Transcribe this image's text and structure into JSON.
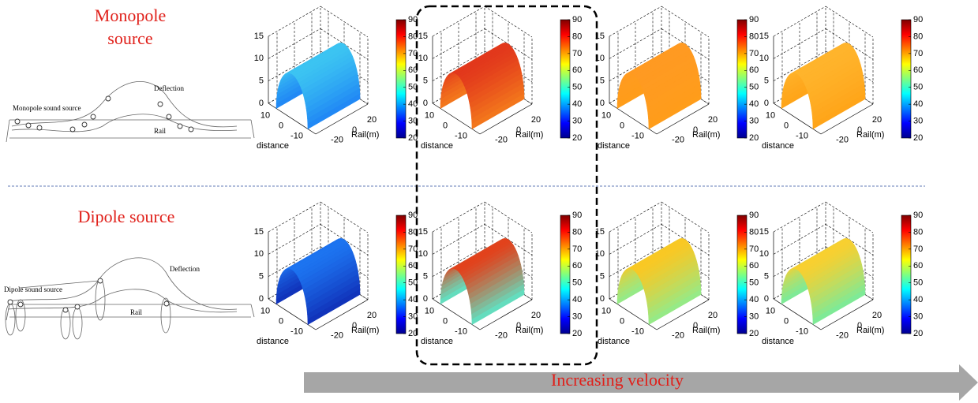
{
  "left": {
    "monopole": {
      "title": [
        "Monopole",
        "source"
      ],
      "source_label": "Monopole sound source",
      "deflection": "Deflection",
      "rail": "Rail"
    },
    "dipole": {
      "title": [
        "Dipole source"
      ],
      "source_label": "Dipole sound source",
      "deflection": "Deflection",
      "rail": "Rail"
    }
  },
  "axes": {
    "zlim": [
      0,
      15
    ],
    "zticks": [
      0,
      5,
      10,
      15
    ],
    "distance_lim": [
      -15,
      15
    ],
    "distance_ticks": [
      10,
      0,
      -10
    ],
    "distance_label": "distance",
    "rail_lim": [
      -30,
      30
    ],
    "rail_ticks": [
      -20,
      0,
      20
    ],
    "rail_label": "Rail(m)",
    "colorbar_lim": [
      20,
      90
    ],
    "colorbar_ticks": [
      20,
      30,
      40,
      50,
      60,
      70,
      80,
      90
    ]
  },
  "rows": [
    {
      "panels": [
        {
          "colors": [
            "#1f86f5",
            "#3cc4f2"
          ]
        },
        {
          "colors": [
            "#f47a1c",
            "#e2381c"
          ]
        },
        {
          "colors": [
            "#ff9d1a",
            "#ff9a22"
          ]
        },
        {
          "colors": [
            "#ffa418",
            "#ffb42c"
          ]
        }
      ]
    },
    {
      "panels": [
        {
          "colors": [
            "#1030b8",
            "#1d74f0"
          ]
        },
        {
          "colors": [
            "#5de6c8",
            "#e2421c"
          ]
        },
        {
          "colors": [
            "#90ec8c",
            "#f9c824"
          ]
        },
        {
          "colors": [
            "#78ec9c",
            "#f8d030"
          ]
        }
      ]
    }
  ],
  "arrow_label": "Increasing velocity"
}
